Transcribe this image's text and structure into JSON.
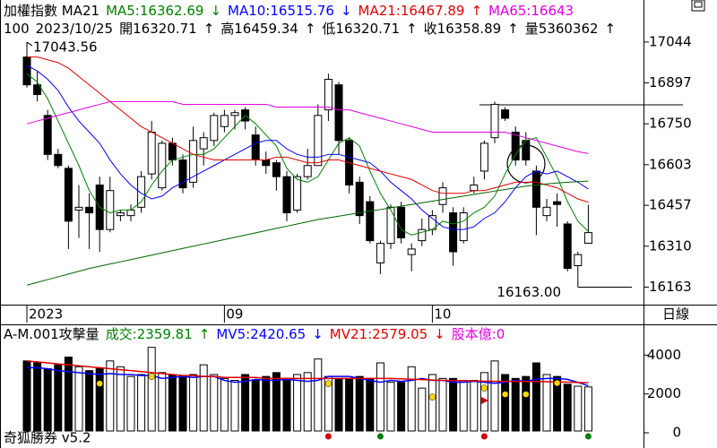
{
  "window": {
    "header_line1": [
      {
        "text": "加權指數 MA21",
        "color": "#000000"
      },
      {
        "text": "MA5:16362.69",
        "color": "#008000"
      },
      {
        "text": "↓",
        "color": "#008000"
      },
      {
        "text": "MA10:16515.76",
        "color": "#0000ff"
      },
      {
        "text": "↓",
        "color": "#0000ff"
      },
      {
        "text": "MA21:16467.89",
        "color": "#e00000"
      },
      {
        "text": "↑",
        "color": "#e00000"
      },
      {
        "text": "MA65:16643",
        "color": "#e000e0"
      }
    ],
    "header_line2": [
      "100",
      "2023/10/25",
      "開16320.71",
      "↑",
      "高16459.34",
      "↑",
      "低16320.71",
      "↑",
      "收16358.89",
      "↑",
      "量5360362",
      "↑"
    ],
    "period": "日線",
    "volume_header": [
      {
        "text": "A-M.001攻擊量",
        "color": "#000000"
      },
      {
        "text": "成交:2359.81",
        "color": "#008000"
      },
      {
        "text": "↑",
        "color": "#008000"
      },
      {
        "text": "MV5:2420.65",
        "color": "#0000ff"
      },
      {
        "text": "↓",
        "color": "#0000ff"
      },
      {
        "text": "MV21:2579.05",
        "color": "#e00000"
      },
      {
        "text": "↓",
        "color": "#e00000"
      },
      {
        "text": "股本億:0",
        "color": "#e000e0"
      }
    ],
    "footer": "奇狐勝券 v5.2"
  },
  "chart_data": [
    {
      "type": "candlestick",
      "categories": [
        "2023",
        null,
        null,
        null,
        null,
        null,
        null,
        null,
        null,
        null,
        null,
        null,
        null,
        null,
        null,
        null,
        null,
        null,
        null,
        "09",
        null,
        null,
        null,
        null,
        null,
        null,
        null,
        null,
        null,
        null,
        null,
        null,
        null,
        null,
        null,
        null,
        null,
        null,
        null,
        "10",
        null,
        null,
        null,
        null,
        null,
        null,
        null,
        null,
        null,
        null,
        null,
        null,
        null,
        null,
        null
      ],
      "open": [
        16990,
        16890,
        16780,
        16640,
        16590,
        16440,
        16450,
        16530,
        16370,
        16420,
        16420,
        16450,
        16570,
        16520,
        16680,
        16620,
        16540,
        16660,
        16690,
        16740,
        16780,
        16800,
        16710,
        16620,
        16610,
        16560,
        16440,
        16560,
        16600,
        16800,
        16890,
        16690,
        16540,
        16470,
        16250,
        16320,
        16450,
        16280,
        16330,
        16370,
        16460,
        16430,
        16330,
        16510,
        16580,
        16700,
        16800,
        16720,
        16690,
        16580,
        16420,
        16470,
        16390,
        16240,
        16320.71
      ],
      "high": [
        17043.56,
        16940,
        16800,
        16660,
        16600,
        16530,
        16500,
        16560,
        16560,
        16440,
        16460,
        16580,
        16760,
        16690,
        16700,
        16640,
        16740,
        16720,
        16790,
        16800,
        16800,
        16810,
        16740,
        16650,
        16620,
        16580,
        16570,
        16660,
        16820,
        16930,
        16900,
        16700,
        16560,
        16490,
        16330,
        16460,
        16470,
        16320,
        16410,
        16440,
        16540,
        16450,
        16450,
        16560,
        16690,
        16830,
        16810,
        16740,
        16720,
        16600,
        16480,
        16500,
        16400,
        16290,
        16459.34
      ],
      "low": [
        16880,
        16830,
        16620,
        16590,
        16300,
        16340,
        16300,
        16290,
        16360,
        16400,
        16400,
        16430,
        16550,
        16510,
        16600,
        16500,
        16520,
        16600,
        16670,
        16720,
        16730,
        16730,
        16600,
        16570,
        16510,
        16400,
        16430,
        16550,
        16600,
        16760,
        16640,
        16500,
        16390,
        16320,
        16210,
        16300,
        16320,
        16220,
        16310,
        16350,
        16430,
        16240,
        16320,
        16500,
        16550,
        16680,
        16760,
        16600,
        16600,
        16350,
        16400,
        16380,
        16220,
        16163,
        16320.71
      ],
      "close": [
        16890,
        16855,
        16640,
        16600,
        16400,
        16450,
        16430,
        16370,
        16510,
        16430,
        16440,
        16560,
        16720,
        16680,
        16620,
        16520,
        16690,
        16700,
        16780,
        16780,
        16790,
        16760,
        16620,
        16600,
        16560,
        16430,
        16560,
        16600,
        16780,
        16910,
        16690,
        16530,
        16420,
        16330,
        16320,
        16450,
        16340,
        16300,
        16370,
        16420,
        16520,
        16290,
        16430,
        16530,
        16680,
        16820,
        16770,
        16620,
        16620,
        16450,
        16450,
        16460,
        16230,
        16280,
        16358.89
      ],
      "up_color": "#ffffff",
      "down_color": "#000000",
      "series": [
        {
          "name": "MA5",
          "color": "#008000",
          "values": [
            16930,
            16900,
            16840,
            16760,
            16680,
            16600,
            16510,
            16450,
            16430,
            16440,
            16440,
            16470,
            16530,
            16580,
            16620,
            16630,
            16640,
            16640,
            16660,
            16700,
            16740,
            16780,
            16750,
            16710,
            16670,
            16590,
            16550,
            16540,
            16560,
            16620,
            16680,
            16700,
            16670,
            16580,
            16500,
            16440,
            16370,
            16350,
            16360,
            16370,
            16400,
            16390,
            16400,
            16430,
            16450,
            16490,
            16570,
            16640,
            16690,
            16700,
            16630,
            16560,
            16470,
            16400,
            16362.69
          ]
        },
        {
          "name": "MA10",
          "color": "#0000ff",
          "values": [
            16960,
            16940,
            16910,
            16870,
            16810,
            16760,
            16720,
            16680,
            16620,
            16570,
            16530,
            16500,
            16480,
            16490,
            16520,
            16540,
            16560,
            16580,
            16600,
            16620,
            16640,
            16660,
            16680,
            16690,
            16690,
            16660,
            16640,
            16630,
            16630,
            16640,
            16640,
            16630,
            16620,
            16610,
            16580,
            16540,
            16510,
            16480,
            16440,
            16410,
            16380,
            16370,
            16370,
            16380,
            16410,
            16430,
            16470,
            16520,
            16560,
            16580,
            16570,
            16580,
            16560,
            16540,
            16515.76
          ]
        },
        {
          "name": "MA21",
          "color": "#e00000",
          "values": [
            16990,
            16990,
            16980,
            16970,
            16950,
            16920,
            16890,
            16860,
            16830,
            16800,
            16770,
            16740,
            16720,
            16700,
            16680,
            16660,
            16640,
            16630,
            16620,
            16620,
            16620,
            16620,
            16620,
            16620,
            16630,
            16630,
            16620,
            16610,
            16610,
            16620,
            16620,
            16610,
            16600,
            16590,
            16580,
            16570,
            16560,
            16550,
            16530,
            16510,
            16500,
            16500,
            16500,
            16510,
            16510,
            16520,
            16530,
            16540,
            16540,
            16540,
            16530,
            16520,
            16500,
            16480,
            16467.89
          ]
        },
        {
          "name": "MA65",
          "color": "#e000e0",
          "values": [
            16750,
            16760,
            16770,
            16780,
            16790,
            16800,
            16810,
            16820,
            16830,
            16830,
            16830,
            16830,
            16830,
            16830,
            16830,
            16820,
            16820,
            16820,
            16820,
            16820,
            16820,
            16820,
            16820,
            16820,
            16810,
            16810,
            16810,
            16810,
            16810,
            16810,
            16800,
            16800,
            16790,
            16780,
            16770,
            16760,
            16750,
            16740,
            16730,
            16720,
            16720,
            16720,
            16720,
            16720,
            16720,
            16720,
            16720,
            16710,
            16700,
            16690,
            16680,
            16670,
            16660,
            16650,
            16643
          ]
        },
        {
          "color": "#006400",
          "values": [
            16170,
            16180,
            16190,
            16200,
            16210,
            16220,
            16230,
            16238,
            16246,
            16254,
            16262,
            16270,
            16278,
            16286,
            16294,
            16302,
            16310,
            16318,
            16326,
            16334,
            16342,
            16350,
            16358,
            16366,
            16374,
            16382,
            16390,
            16398,
            16406,
            16412,
            16418,
            16424,
            16430,
            16436,
            16442,
            16448,
            16454,
            16460,
            16466,
            16472,
            16478,
            16484,
            16490,
            16496,
            16502,
            16508,
            16514,
            16520,
            16526,
            16530,
            16534,
            16537,
            16540,
            16542,
            16544
          ]
        }
      ],
      "annotations": [
        {
          "value": 17043.56,
          "label": "17043.56"
        },
        {
          "value": 16163,
          "label": "16163.00"
        }
      ],
      "ylim": [
        16100,
        17195
      ],
      "yticks": [
        17044,
        16897,
        16750,
        16603,
        16457,
        16310,
        16163
      ]
    },
    {
      "type": "volume",
      "values": [
        3700,
        3600,
        3300,
        3500,
        3900,
        3400,
        3200,
        3300,
        3700,
        3400,
        2900,
        3000,
        4400,
        3100,
        3000,
        2900,
        3000,
        3500,
        3000,
        2800,
        2700,
        3000,
        2700,
        2900,
        3100,
        2800,
        3000,
        3100,
        3800,
        2900,
        2800,
        2800,
        2900,
        2800,
        3600,
        2600,
        2600,
        3400,
        2300,
        3000,
        2800,
        2800,
        2700,
        2700,
        3100,
        3700,
        3000,
        2800,
        2900,
        3600,
        3000,
        2900,
        2500,
        2400,
        2359.81
      ],
      "series": [
        {
          "name": "MV5",
          "color": "#0000ff",
          "values": [
            3350,
            3350,
            3300,
            3200,
            3150,
            3100,
            3050,
            3000,
            3050,
            3000,
            3000,
            2950,
            2950,
            2800,
            2850,
            2900,
            2850,
            2900,
            2900,
            2700,
            2600,
            2650,
            2750,
            2700,
            2700,
            2750,
            2700,
            2650,
            2700,
            2900,
            2900,
            2900,
            2800,
            2700,
            2600,
            2700,
            2650,
            2700,
            2800,
            2700,
            2700,
            2600,
            2600,
            2650,
            2600,
            2550,
            2600,
            2700,
            2650,
            2750,
            2800,
            2800,
            2750,
            2600,
            2420.65
          ]
        },
        {
          "name": "MV21",
          "color": "#e00000",
          "values": [
            3700,
            3650,
            3600,
            3550,
            3500,
            3450,
            3400,
            3350,
            3300,
            3250,
            3200,
            3150,
            3100,
            3050,
            3000,
            2950,
            2950,
            2900,
            2900,
            2850,
            2850,
            2850,
            2850,
            2800,
            2800,
            2800,
            2800,
            2800,
            2800,
            2800,
            2800,
            2800,
            2800,
            2800,
            2800,
            2800,
            2780,
            2760,
            2740,
            2720,
            2700,
            2690,
            2680,
            2670,
            2660,
            2650,
            2650,
            2650,
            2640,
            2640,
            2630,
            2620,
            2610,
            2590,
            2579.05
          ]
        }
      ],
      "markers": [
        {
          "color": "#ffd700",
          "values": [
            null,
            null,
            null,
            null,
            null,
            null,
            null,
            2530,
            null,
            null,
            null,
            null,
            2900,
            null,
            null,
            null,
            null,
            null,
            null,
            null,
            null,
            null,
            null,
            null,
            null,
            null,
            null,
            null,
            null,
            2530,
            null,
            null,
            null,
            null,
            null,
            null,
            null,
            null,
            null,
            1840,
            null,
            null,
            null,
            null,
            2300,
            null,
            1980,
            null,
            1980,
            null,
            null,
            2560,
            null,
            null,
            null
          ]
        },
        {
          "color": "#d00000",
          "values": [
            null,
            null,
            null,
            null,
            null,
            null,
            null,
            null,
            null,
            null,
            null,
            null,
            null,
            null,
            null,
            null,
            null,
            null,
            null,
            null,
            null,
            null,
            null,
            null,
            null,
            null,
            null,
            null,
            null,
            0,
            null,
            null,
            null,
            null,
            null,
            null,
            null,
            null,
            null,
            null,
            null,
            null,
            null,
            null,
            0,
            null,
            null,
            null,
            null,
            null,
            null,
            null,
            null,
            null,
            null
          ]
        },
        {
          "color": "#008000",
          "values": [
            null,
            null,
            null,
            null,
            null,
            null,
            null,
            null,
            null,
            null,
            null,
            null,
            null,
            null,
            null,
            null,
            null,
            null,
            null,
            null,
            null,
            null,
            null,
            null,
            null,
            null,
            null,
            null,
            null,
            null,
            null,
            null,
            null,
            null,
            0,
            null,
            null,
            null,
            null,
            null,
            null,
            null,
            null,
            null,
            null,
            null,
            null,
            null,
            null,
            null,
            null,
            null,
            null,
            null,
            0
          ]
        }
      ],
      "ylim": [
        0,
        4800
      ],
      "yticks": [
        4000,
        2000,
        0
      ]
    }
  ]
}
